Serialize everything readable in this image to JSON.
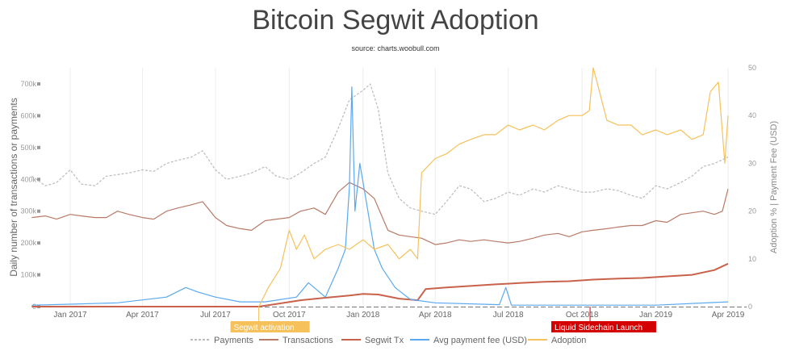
{
  "title": "Bitcoin Segwit Adoption",
  "subtitle": "source: charts.woobull.com",
  "chart_data": {
    "type": "line",
    "title": "Bitcoin Segwit Adoption",
    "subtitle": "source: charts.woobull.com",
    "ylabel_left": "Daily number of transactions or payments",
    "ylabel_right": "Adoption % | Payment Fee (USD)",
    "ylim_left": [
      0,
      700000
    ],
    "ylim_right": [
      0,
      50
    ],
    "yticks_left": [
      "0",
      "100k",
      "200k",
      "300k",
      "400k",
      "500k",
      "600k",
      "700k"
    ],
    "yticks_right": [
      "0",
      "10",
      "20",
      "30",
      "40",
      "50"
    ],
    "xticks": [
      {
        "date": "2017-01-01",
        "label": "Jan 2017"
      },
      {
        "date": "2017-04-01",
        "label": "Apr 2017"
      },
      {
        "date": "2017-07-01",
        "label": "Jul 2017"
      },
      {
        "date": "2017-10-01",
        "label": "Oct 2017"
      },
      {
        "date": "2018-01-01",
        "label": "Jan 2018"
      },
      {
        "date": "2018-04-01",
        "label": "Apr 2018"
      },
      {
        "date": "2018-07-01",
        "label": "Jul 2018"
      },
      {
        "date": "2018-10-01",
        "label": "Oct 2018"
      },
      {
        "date": "2019-01-01",
        "label": "Jan 2019"
      },
      {
        "date": "2019-04-01",
        "label": "Apr 2019"
      }
    ],
    "annotations": [
      {
        "date": "2017-08-24",
        "label": "Segwit activation",
        "color": "#f6c15a"
      },
      {
        "date": "2018-10-11",
        "label": "Liquid Sidechain Launch",
        "color": "#d40000"
      }
    ],
    "series": [
      {
        "name": "Payments",
        "axis": "left",
        "color": "#bbbbbb",
        "dash": true,
        "x": [
          "2016-11-14",
          "2016-12-01",
          "2016-12-15",
          "2017-01-01",
          "2017-01-15",
          "2017-02-01",
          "2017-02-15",
          "2017-03-01",
          "2017-03-15",
          "2017-04-01",
          "2017-04-15",
          "2017-05-01",
          "2017-05-15",
          "2017-06-01",
          "2017-06-15",
          "2017-07-01",
          "2017-07-15",
          "2017-08-01",
          "2017-08-15",
          "2017-09-01",
          "2017-09-15",
          "2017-10-01",
          "2017-10-15",
          "2017-11-01",
          "2017-11-15",
          "2017-12-01",
          "2017-12-15",
          "2018-01-01",
          "2018-01-10",
          "2018-01-20",
          "2018-02-01",
          "2018-02-15",
          "2018-03-01",
          "2018-03-15",
          "2018-04-01",
          "2018-04-15",
          "2018-05-01",
          "2018-05-15",
          "2018-06-01",
          "2018-06-15",
          "2018-07-01",
          "2018-07-15",
          "2018-08-01",
          "2018-08-15",
          "2018-09-01",
          "2018-09-15",
          "2018-10-01",
          "2018-10-15",
          "2018-11-01",
          "2018-11-15",
          "2018-12-01",
          "2018-12-15",
          "2019-01-01",
          "2019-01-15",
          "2019-02-01",
          "2019-02-15",
          "2019-03-01",
          "2019-03-15",
          "2019-04-01"
        ],
        "y": [
          410000,
          380000,
          390000,
          430000,
          385000,
          380000,
          410000,
          415000,
          420000,
          430000,
          425000,
          450000,
          460000,
          470000,
          490000,
          430000,
          400000,
          410000,
          420000,
          440000,
          410000,
          400000,
          420000,
          450000,
          470000,
          560000,
          650000,
          680000,
          700000,
          620000,
          420000,
          340000,
          310000,
          300000,
          290000,
          330000,
          380000,
          370000,
          330000,
          340000,
          360000,
          350000,
          370000,
          360000,
          380000,
          370000,
          360000,
          360000,
          370000,
          365000,
          350000,
          340000,
          380000,
          370000,
          390000,
          410000,
          440000,
          450000,
          470000
        ]
      },
      {
        "name": "Transactions",
        "axis": "left",
        "color": "#b97a67",
        "x": [
          "2016-11-14",
          "2016-12-01",
          "2016-12-15",
          "2017-01-01",
          "2017-01-15",
          "2017-02-01",
          "2017-02-15",
          "2017-03-01",
          "2017-03-15",
          "2017-04-01",
          "2017-04-15",
          "2017-05-01",
          "2017-05-15",
          "2017-06-01",
          "2017-06-15",
          "2017-07-01",
          "2017-07-15",
          "2017-08-01",
          "2017-08-15",
          "2017-09-01",
          "2017-09-15",
          "2017-10-01",
          "2017-10-15",
          "2017-11-01",
          "2017-11-15",
          "2017-12-01",
          "2017-12-15",
          "2018-01-01",
          "2018-01-15",
          "2018-02-01",
          "2018-02-15",
          "2018-03-01",
          "2018-03-15",
          "2018-04-01",
          "2018-04-15",
          "2018-05-01",
          "2018-05-15",
          "2018-06-01",
          "2018-06-15",
          "2018-07-01",
          "2018-07-15",
          "2018-08-01",
          "2018-08-15",
          "2018-09-01",
          "2018-09-15",
          "2018-10-01",
          "2018-10-15",
          "2018-11-01",
          "2018-11-15",
          "2018-12-01",
          "2018-12-15",
          "2019-01-01",
          "2019-01-15",
          "2019-02-01",
          "2019-02-15",
          "2019-03-01",
          "2019-03-15",
          "2019-03-25",
          "2019-04-01"
        ],
        "y": [
          280000,
          285000,
          275000,
          290000,
          285000,
          280000,
          280000,
          300000,
          290000,
          280000,
          275000,
          300000,
          310000,
          320000,
          330000,
          280000,
          255000,
          245000,
          240000,
          270000,
          275000,
          280000,
          300000,
          310000,
          290000,
          360000,
          390000,
          370000,
          340000,
          240000,
          225000,
          220000,
          215000,
          195000,
          200000,
          210000,
          205000,
          210000,
          205000,
          200000,
          205000,
          215000,
          225000,
          230000,
          220000,
          235000,
          240000,
          245000,
          250000,
          255000,
          255000,
          270000,
          265000,
          290000,
          295000,
          300000,
          290000,
          300000,
          370000
        ]
      },
      {
        "name": "Segwit Tx",
        "axis": "left",
        "color": "#c9624a",
        "width": 2,
        "x": [
          "2016-11-14",
          "2017-08-24",
          "2017-09-15",
          "2017-10-15",
          "2017-11-15",
          "2017-12-15",
          "2018-01-01",
          "2018-01-20",
          "2018-02-15",
          "2018-03-10",
          "2018-03-20",
          "2018-04-15",
          "2018-05-15",
          "2018-06-15",
          "2018-07-15",
          "2018-08-15",
          "2018-09-15",
          "2018-10-15",
          "2018-11-15",
          "2018-12-15",
          "2019-01-15",
          "2019-02-15",
          "2019-03-15",
          "2019-04-01"
        ],
        "y": [
          0,
          0,
          8000,
          20000,
          28000,
          35000,
          40000,
          38000,
          25000,
          20000,
          55000,
          60000,
          65000,
          70000,
          74000,
          78000,
          80000,
          85000,
          88000,
          90000,
          95000,
          100000,
          115000,
          135000
        ]
      },
      {
        "name": "Avg payment fee (USD)",
        "axis": "right",
        "color": "#5aa9f0",
        "x": [
          "2016-11-14",
          "2017-01-01",
          "2017-03-01",
          "2017-05-01",
          "2017-05-25",
          "2017-06-10",
          "2017-07-01",
          "2017-08-01",
          "2017-09-01",
          "2017-10-10",
          "2017-10-25",
          "2017-11-15",
          "2017-12-01",
          "2017-12-10",
          "2017-12-15",
          "2017-12-18",
          "2017-12-22",
          "2017-12-28",
          "2018-01-05",
          "2018-01-15",
          "2018-01-25",
          "2018-02-10",
          "2018-03-01",
          "2018-04-01",
          "2018-06-20",
          "2018-06-28",
          "2018-07-05",
          "2018-10-01",
          "2019-01-01",
          "2019-04-01"
        ],
        "y": [
          0.3,
          0.5,
          0.8,
          2,
          4,
          3,
          2,
          1,
          1,
          2,
          5,
          2,
          8,
          12,
          25,
          46,
          20,
          30,
          22,
          12,
          8,
          4,
          1.5,
          0.8,
          0.4,
          4,
          0.3,
          0.3,
          0.3,
          1
        ]
      },
      {
        "name": "Adoption",
        "axis": "right",
        "color": "#f6c15a",
        "x": [
          "2017-08-24",
          "2017-09-05",
          "2017-09-20",
          "2017-10-01",
          "2017-10-10",
          "2017-10-20",
          "2017-11-01",
          "2017-11-15",
          "2017-12-01",
          "2017-12-15",
          "2018-01-01",
          "2018-01-15",
          "2018-02-01",
          "2018-02-15",
          "2018-03-01",
          "2018-03-10",
          "2018-03-15",
          "2018-04-01",
          "2018-04-15",
          "2018-05-01",
          "2018-05-15",
          "2018-06-01",
          "2018-06-15",
          "2018-07-01",
          "2018-07-15",
          "2018-08-01",
          "2018-08-15",
          "2018-09-01",
          "2018-09-15",
          "2018-10-01",
          "2018-10-10",
          "2018-10-15",
          "2018-11-01",
          "2018-11-15",
          "2018-12-01",
          "2018-12-15",
          "2019-01-01",
          "2019-01-15",
          "2019-02-01",
          "2019-02-15",
          "2019-03-01",
          "2019-03-10",
          "2019-03-20",
          "2019-03-28",
          "2019-04-01"
        ],
        "y": [
          0,
          4,
          8,
          16,
          12,
          15,
          10,
          12,
          13,
          12,
          14,
          12,
          13,
          10,
          12,
          10,
          28,
          31,
          32,
          34,
          35,
          36,
          36,
          38,
          37,
          38,
          37,
          39,
          40,
          40,
          41,
          50,
          39,
          38,
          38,
          36,
          37,
          36,
          37,
          35,
          36,
          45,
          47,
          30,
          40
        ]
      }
    ]
  }
}
